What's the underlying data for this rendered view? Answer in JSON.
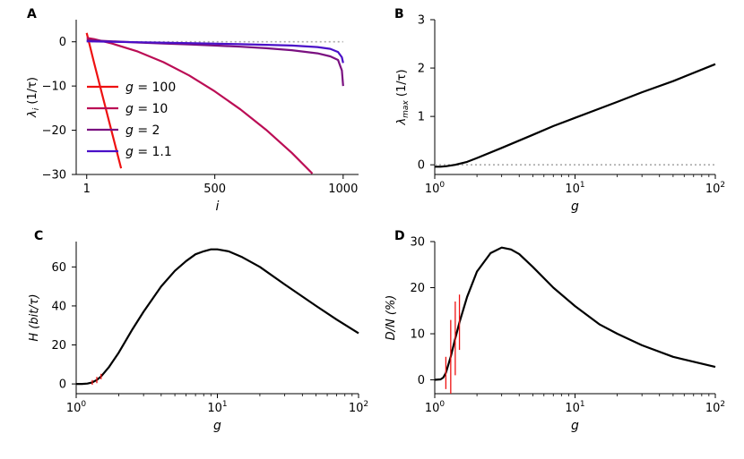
{
  "chart_data": [
    {
      "panel": "A",
      "type": "line",
      "xlabel": "i",
      "ylabel": "λ_i (1/τ)",
      "xlim": [
        -40,
        1060
      ],
      "ylim": [
        -30,
        5
      ],
      "x_ticks": [
        1,
        500,
        1000
      ],
      "x_tick_labels": [
        "1",
        "500",
        "1000"
      ],
      "y_ticks": [
        0,
        -10,
        -20,
        -30
      ],
      "y_tick_labels": [
        "0",
        "−10",
        "−20",
        "−30"
      ],
      "reference_line": {
        "y": 0,
        "style": "dotted",
        "color": "#aaaaaa"
      },
      "legend": {
        "position": "lower-left",
        "entries": [
          {
            "label": "g = 100",
            "color": "#ee1111"
          },
          {
            "label": "g = 10",
            "color": "#bb0d55"
          },
          {
            "label": "g = 2",
            "color": "#7a1080"
          },
          {
            "label": "g = 1.1",
            "color": "#4a10c8"
          }
        ]
      },
      "series": [
        {
          "name": "g = 100",
          "color": "#ee1111",
          "x": [
            1,
            30,
            60,
            90,
            120,
            135
          ],
          "y": [
            2,
            -4.8,
            -11.6,
            -18.4,
            -25.2,
            -28.6
          ]
        },
        {
          "name": "g = 10",
          "color": "#bb0d55",
          "x": [
            1,
            30,
            100,
            200,
            300,
            400,
            500,
            600,
            700,
            800,
            880
          ],
          "y": [
            0.9,
            0.6,
            -0.4,
            -2.2,
            -4.6,
            -7.6,
            -11.2,
            -15.3,
            -19.9,
            -25.1,
            -29.8
          ]
        },
        {
          "name": "g = 2",
          "color": "#7a1080",
          "x": [
            1,
            100,
            200,
            300,
            400,
            500,
            600,
            700,
            800,
            900,
            950,
            980,
            995,
            1000
          ],
          "y": [
            0.4,
            0.1,
            -0.15,
            -0.4,
            -0.6,
            -0.85,
            -1.1,
            -1.45,
            -1.9,
            -2.6,
            -3.3,
            -4.1,
            -6.5,
            -10
          ]
        },
        {
          "name": "g = 1.1",
          "color": "#4a10c8",
          "x": [
            1,
            200,
            400,
            600,
            800,
            900,
            950,
            980,
            995,
            1000
          ],
          "y": [
            0.1,
            -0.1,
            -0.3,
            -0.55,
            -0.85,
            -1.2,
            -1.6,
            -2.3,
            -3.5,
            -4.8
          ]
        }
      ]
    },
    {
      "panel": "B",
      "type": "line",
      "xscale": "log",
      "xlabel": "g",
      "ylabel": "λ_max (1/τ)",
      "xlim": [
        1,
        100
      ],
      "ylim": [
        -0.2,
        3
      ],
      "x_ticks": [
        1,
        10,
        100
      ],
      "x_tick_labels": [
        "10⁰",
        "10¹",
        "10²"
      ],
      "y_ticks": [
        0,
        1,
        2,
        3
      ],
      "y_tick_labels": [
        "0",
        "1",
        "2",
        "3"
      ],
      "reference_line": {
        "y": 0,
        "style": "dotted",
        "color": "#aaaaaa"
      },
      "series": [
        {
          "name": "λ_max",
          "color": "#000000",
          "x": [
            1,
            1.1,
            1.2,
            1.4,
            1.7,
            2,
            3,
            5,
            7,
            10,
            20,
            30,
            50,
            100
          ],
          "y": [
            -0.04,
            -0.04,
            -0.03,
            0.0,
            0.06,
            0.14,
            0.35,
            0.62,
            0.8,
            0.97,
            1.3,
            1.5,
            1.73,
            2.08
          ]
        }
      ]
    },
    {
      "panel": "C",
      "type": "line",
      "xscale": "log",
      "xlabel": "g",
      "ylabel": "H (bit/τ)",
      "xlim": [
        1,
        100
      ],
      "ylim": [
        -5,
        73
      ],
      "x_ticks": [
        1,
        10,
        100
      ],
      "x_tick_labels": [
        "10⁰",
        "10¹",
        "10²"
      ],
      "y_ticks": [
        0,
        20,
        40,
        60
      ],
      "y_tick_labels": [
        "0",
        "20",
        "40",
        "60"
      ],
      "series": [
        {
          "name": "H",
          "color": "#000000",
          "x": [
            1,
            1.1,
            1.2,
            1.3,
            1.4,
            1.5,
            1.7,
            2,
            2.5,
            3,
            4,
            5,
            6,
            7,
            8,
            9,
            10,
            12,
            15,
            20,
            30,
            50,
            70,
            100
          ],
          "y": [
            0,
            0,
            0.2,
            0.8,
            2,
            3.8,
            8.5,
            16,
            28,
            37,
            50,
            58,
            63,
            66.5,
            68,
            69,
            69,
            68,
            65,
            60,
            51,
            40,
            33,
            26
          ]
        },
        {
          "name": "error bars",
          "color": "#ee1111",
          "x": [
            1.3,
            1.4,
            1.5
          ],
          "y": [
            0.8,
            2,
            3.8
          ],
          "err": [
            1.2,
            1.6,
            1.4
          ]
        }
      ]
    },
    {
      "panel": "D",
      "type": "line",
      "xscale": "log",
      "xlabel": "g",
      "ylabel": "D/N (%)",
      "xlim": [
        1,
        100
      ],
      "ylim": [
        -3,
        30
      ],
      "x_ticks": [
        1,
        10,
        100
      ],
      "x_tick_labels": [
        "10⁰",
        "10¹",
        "10²"
      ],
      "y_ticks": [
        0,
        10,
        20,
        30
      ],
      "y_tick_labels": [
        "0",
        "10",
        "20",
        "30"
      ],
      "series": [
        {
          "name": "D/N",
          "color": "#000000",
          "x": [
            1,
            1.1,
            1.15,
            1.2,
            1.3,
            1.4,
            1.5,
            1.7,
            2,
            2.5,
            3,
            3.5,
            4,
            5,
            7,
            10,
            15,
            20,
            30,
            50,
            100
          ],
          "y": [
            0,
            0.1,
            0.5,
            1.5,
            5,
            9,
            12.5,
            18,
            23.5,
            27.5,
            28.7,
            28.3,
            27.3,
            24.5,
            20,
            16,
            12,
            10,
            7.5,
            5,
            2.8
          ]
        },
        {
          "name": "error bars",
          "color": "#ee1111",
          "x": [
            1.2,
            1.3,
            1.4,
            1.5
          ],
          "y": [
            1.5,
            5,
            9,
            12.5
          ],
          "err": [
            3.5,
            8,
            8,
            6
          ]
        }
      ]
    }
  ],
  "panel_letters": [
    "A",
    "B",
    "C",
    "D"
  ]
}
